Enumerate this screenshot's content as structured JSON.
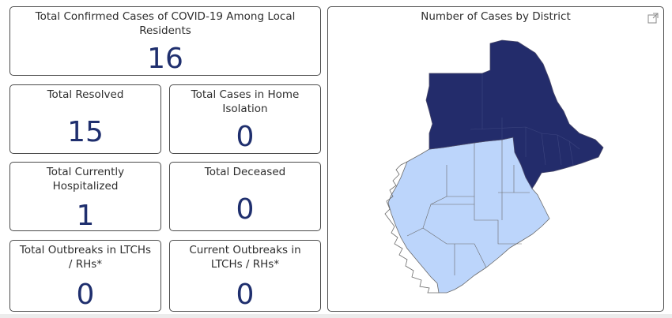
{
  "cards": {
    "total_confirmed": {
      "label": "Total Confirmed Cases of COVID-19 Among Local Residents",
      "value": "16"
    },
    "total_resolved": {
      "label": "Total Resolved",
      "value": "15"
    },
    "home_isolation": {
      "label": "Total Cases in Home Isolation",
      "value": "0"
    },
    "hospitalized": {
      "label": "Total Currently Hospitalized",
      "value": "1"
    },
    "deceased": {
      "label": "Total Deceased",
      "value": "0"
    },
    "total_outbreaks": {
      "label": "Total Outbreaks in LTCHs / RHs*",
      "value": "0"
    },
    "current_outbreaks": {
      "label": "Current Outbreaks in LTCHs / RHs*",
      "value": "0"
    }
  },
  "map": {
    "title": "Number of Cases by District",
    "focus_icon": "focus-mode-icon",
    "colors": {
      "north": "#232c6b",
      "south": "#bcd5fb",
      "border": "#6b6b6b"
    }
  },
  "colors": {
    "value_text": "#1f2f6e"
  }
}
